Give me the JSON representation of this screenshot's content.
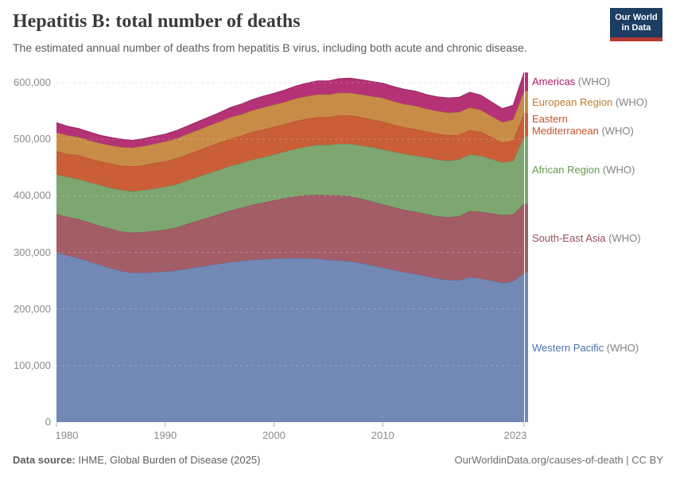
{
  "header": {
    "title": "Hepatitis B: total number of deaths",
    "subtitle": "The estimated annual number of deaths from hepatitis B virus, including both acute and chronic disease.",
    "logo": {
      "line1": "Our World",
      "line2": "in Data"
    }
  },
  "chart_data": {
    "type": "area",
    "stacked": true,
    "title": "Hepatitis B: total number of deaths",
    "xlabel": "",
    "ylabel": "",
    "grid": "horizontal-dashed",
    "legend_position": "right",
    "ylim": [
      0,
      600000
    ],
    "x": [
      1980,
      1981,
      1982,
      1983,
      1984,
      1985,
      1986,
      1987,
      1988,
      1989,
      1990,
      1991,
      1992,
      1993,
      1994,
      1995,
      1996,
      1997,
      1998,
      1999,
      2000,
      2001,
      2002,
      2003,
      2004,
      2005,
      2006,
      2007,
      2008,
      2009,
      2010,
      2011,
      2012,
      2013,
      2014,
      2015,
      2016,
      2017,
      2018,
      2019,
      2020,
      2021,
      2022,
      2023
    ],
    "yticks": [
      {
        "value": 0,
        "label": "0"
      },
      {
        "value": 100000,
        "label": "100,000"
      },
      {
        "value": 200000,
        "label": "200,000"
      },
      {
        "value": 300000,
        "label": "300,000"
      },
      {
        "value": 400000,
        "label": "400,000"
      },
      {
        "value": 500000,
        "label": "500,000"
      },
      {
        "value": 600000,
        "label": "600,000"
      }
    ],
    "xticks": [
      {
        "value": 1980,
        "label": "1980"
      },
      {
        "value": 1990,
        "label": "1990"
      },
      {
        "value": 2000,
        "label": "2000"
      },
      {
        "value": 2010,
        "label": "2010"
      },
      {
        "value": 2023,
        "label": "2023"
      }
    ],
    "series": [
      {
        "name": "Western Pacific",
        "suffix": "(WHO)",
        "fill": "#7289b6",
        "text_color": "#4d6fab",
        "values": [
          300000,
          295000,
          290000,
          284000,
          278000,
          272000,
          267000,
          264000,
          264000,
          265000,
          266000,
          268000,
          271000,
          274000,
          277000,
          280000,
          283000,
          285000,
          287000,
          288000,
          289000,
          290000,
          290000,
          290000,
          289000,
          287000,
          286000,
          284000,
          281000,
          277000,
          273000,
          269000,
          265000,
          262000,
          258000,
          254000,
          251000,
          251000,
          256000,
          254000,
          250000,
          246000,
          249000,
          264000
        ]
      },
      {
        "name": "South-East Asia",
        "suffix": "(WHO)",
        "fill": "#a35d66",
        "text_color": "#9b4e5d",
        "values": [
          68000,
          68000,
          69000,
          69000,
          69000,
          70000,
          70000,
          71000,
          72000,
          73000,
          74000,
          76000,
          79000,
          82000,
          85000,
          88000,
          91000,
          94000,
          97000,
          100000,
          103000,
          106000,
          109000,
          111000,
          113000,
          114000,
          115000,
          115000,
          114000,
          113000,
          112000,
          111000,
          110000,
          110000,
          110000,
          110000,
          111000,
          113000,
          117000,
          118000,
          119000,
          120000,
          118000,
          122000
        ]
      },
      {
        "name": "African Region",
        "suffix": "(WHO)",
        "fill": "#7ea671",
        "text_color": "#629b50",
        "values": [
          70000,
          70000,
          71000,
          71000,
          72000,
          72000,
          73000,
          73000,
          74000,
          75000,
          76000,
          76000,
          77000,
          77000,
          78000,
          78000,
          79000,
          79000,
          80000,
          80000,
          81000,
          82000,
          84000,
          86000,
          88000,
          89000,
          91000,
          93000,
          94000,
          96000,
          97000,
          98000,
          99000,
          99000,
          100000,
          100000,
          100000,
          100000,
          100000,
          99000,
          96000,
          93000,
          95000,
          119000
        ]
      },
      {
        "name": "Eastern\nMediterranean",
        "suffix": "(WHO)",
        "fill": "#ca5e37",
        "text_color": "#c3522a",
        "values": [
          41000,
          41000,
          42000,
          42000,
          42000,
          43000,
          43000,
          44000,
          44000,
          45000,
          45000,
          46000,
          46000,
          47000,
          47000,
          48000,
          48000,
          48000,
          49000,
          49000,
          49000,
          49000,
          49000,
          49000,
          49000,
          49000,
          50000,
          50000,
          50000,
          49000,
          49000,
          48000,
          47000,
          47000,
          46000,
          46000,
          45000,
          44000,
          43000,
          42000,
          39000,
          35000,
          36000,
          41000
        ]
      },
      {
        "name": "European Region",
        "suffix": "(WHO)",
        "fill": "#c98c47",
        "text_color": "#bf7b31",
        "values": [
          33000,
          33000,
          32000,
          32000,
          32000,
          32000,
          33000,
          33000,
          34000,
          34000,
          35000,
          35000,
          36000,
          36000,
          37000,
          37000,
          38000,
          38000,
          38000,
          39000,
          39000,
          39000,
          40000,
          40000,
          40000,
          40000,
          40000,
          40000,
          40000,
          41000,
          42000,
          41000,
          41000,
          41000,
          40000,
          40000,
          40000,
          40000,
          40000,
          39000,
          37000,
          36000,
          37000,
          39000
        ]
      },
      {
        "name": "Americas",
        "suffix": "(WHO)",
        "fill": "#b53277",
        "text_color": "#ab1a6b",
        "values": [
          17000,
          16000,
          15000,
          15000,
          14000,
          14000,
          14000,
          13000,
          13000,
          13000,
          13000,
          14000,
          14000,
          15000,
          15000,
          16000,
          17000,
          18000,
          19000,
          20000,
          20000,
          21000,
          22000,
          23000,
          24000,
          24000,
          25000,
          26000,
          26000,
          26000,
          26000,
          26000,
          26000,
          26000,
          25000,
          25000,
          26000,
          26000,
          27000,
          26000,
          25000,
          24000,
          25000,
          33000
        ]
      }
    ]
  },
  "footer": {
    "source_label": "Data source:",
    "source_value": " IHME, Global Burden of Disease (2025)",
    "credit": "OurWorldinData.org/causes-of-death | CC BY"
  }
}
